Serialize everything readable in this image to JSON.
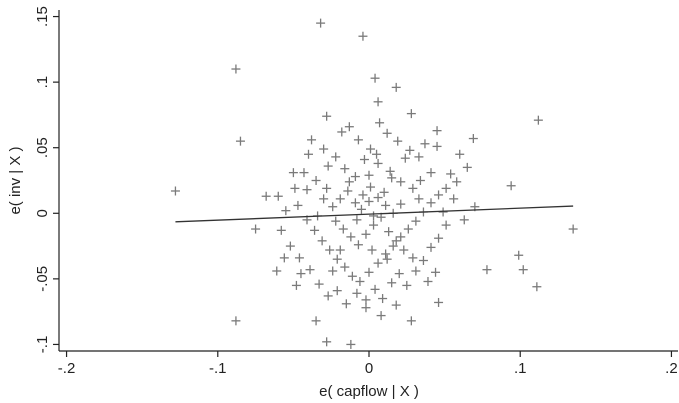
{
  "chart_data": {
    "type": "scatter",
    "title": "",
    "xlabel": "e( capflow | X )",
    "ylabel": "e( inv | X )",
    "xlim": [
      -0.205,
      0.205
    ],
    "ylim": [
      -0.105,
      0.155
    ],
    "x_ticks": [
      -0.2,
      -0.1,
      0,
      0.1,
      0.2
    ],
    "x_tick_labels": [
      "-.2",
      "-.1",
      "0",
      ".1",
      ".2"
    ],
    "y_ticks": [
      -0.1,
      -0.05,
      0,
      0.05,
      0.1,
      0.15
    ],
    "y_tick_labels": [
      "-.1",
      "-.05",
      "0",
      ".05",
      ".1",
      ".15"
    ],
    "grid": false,
    "marker": "plus",
    "colors": {
      "points": "#7a7a7a",
      "fit_line": "#333333",
      "axes": "#222222"
    },
    "fit_line": {
      "x": [
        -0.128,
        0.135
      ],
      "y": [
        -0.0065,
        0.0055
      ]
    },
    "points": [
      [
        -0.032,
        0.145
      ],
      [
        -0.004,
        0.135
      ],
      [
        -0.088,
        0.11
      ],
      [
        0.004,
        0.103
      ],
      [
        0.018,
        0.096
      ],
      [
        0.006,
        0.085
      ],
      [
        -0.085,
        0.055
      ],
      [
        0.112,
        0.071
      ],
      [
        -0.028,
        0.074
      ],
      [
        0.028,
        0.076
      ],
      [
        0.045,
        0.063
      ],
      [
        0.069,
        0.057
      ],
      [
        -0.128,
        0.017
      ],
      [
        -0.06,
        0.013
      ],
      [
        -0.05,
        0.031
      ],
      [
        -0.068,
        0.013
      ],
      [
        0.094,
        0.021
      ],
      [
        0.065,
        0.035
      ],
      [
        0.054,
        0.03
      ],
      [
        0.07,
        0.005
      ],
      [
        -0.075,
        -0.012
      ],
      [
        -0.061,
        -0.044
      ],
      [
        -0.045,
        -0.046
      ],
      [
        -0.088,
        -0.082
      ],
      [
        -0.035,
        -0.082
      ],
      [
        -0.028,
        -0.098
      ],
      [
        -0.002,
        -0.072
      ],
      [
        0.008,
        -0.078
      ],
      [
        -0.012,
        -0.1
      ],
      [
        0.028,
        -0.082
      ],
      [
        0.046,
        -0.068
      ],
      [
        0.078,
        -0.043
      ],
      [
        0.099,
        -0.032
      ],
      [
        0.102,
        -0.043
      ],
      [
        0.111,
        -0.056
      ],
      [
        0.135,
        -0.012
      ],
      [
        -0.04,
        0.045
      ],
      [
        -0.038,
        0.056
      ],
      [
        -0.03,
        0.049
      ],
      [
        -0.018,
        0.062
      ],
      [
        -0.013,
        0.066
      ],
      [
        0.001,
        0.049
      ],
      [
        0.012,
        0.061
      ],
      [
        0.024,
        0.042
      ],
      [
        0.033,
        0.043
      ],
      [
        0.045,
        0.051
      ],
      [
        0.041,
        0.031
      ],
      [
        0.034,
        0.025
      ],
      [
        0.029,
        0.019
      ],
      [
        0.021,
        0.024
      ],
      [
        0.014,
        0.032
      ],
      [
        0.006,
        0.038
      ],
      [
        -0.003,
        0.041
      ],
      [
        -0.009,
        0.028
      ],
      [
        -0.016,
        0.034
      ],
      [
        -0.022,
        0.043
      ],
      [
        -0.027,
        0.036
      ],
      [
        -0.035,
        0.025
      ],
      [
        -0.041,
        0.018
      ],
      [
        -0.047,
        0.006
      ],
      [
        -0.041,
        -0.005
      ],
      [
        -0.036,
        -0.013
      ],
      [
        -0.031,
        -0.021
      ],
      [
        -0.026,
        -0.028
      ],
      [
        -0.021,
        -0.035
      ],
      [
        -0.016,
        -0.041
      ],
      [
        -0.011,
        -0.048
      ],
      [
        -0.006,
        -0.052
      ],
      [
        0.0,
        -0.045
      ],
      [
        0.006,
        -0.038
      ],
      [
        0.011,
        -0.031
      ],
      [
        0.016,
        -0.025
      ],
      [
        0.021,
        -0.018
      ],
      [
        0.026,
        -0.012
      ],
      [
        0.031,
        -0.006
      ],
      [
        0.036,
        0.001
      ],
      [
        0.041,
        0.008
      ],
      [
        0.046,
        0.014
      ],
      [
        0.051,
        0.019
      ],
      [
        0.056,
        0.011
      ],
      [
        -0.052,
        -0.025
      ],
      [
        -0.046,
        -0.034
      ],
      [
        -0.039,
        -0.043
      ],
      [
        -0.033,
        -0.054
      ],
      [
        -0.027,
        -0.063
      ],
      [
        -0.021,
        -0.059
      ],
      [
        -0.015,
        -0.069
      ],
      [
        -0.008,
        -0.061
      ],
      [
        -0.002,
        -0.066
      ],
      [
        0.004,
        -0.058
      ],
      [
        0.009,
        -0.065
      ],
      [
        0.015,
        -0.053
      ],
      [
        0.02,
        -0.046
      ],
      [
        0.025,
        -0.055
      ],
      [
        0.031,
        -0.044
      ],
      [
        0.036,
        -0.036
      ],
      [
        0.041,
        -0.026
      ],
      [
        0.046,
        -0.019
      ],
      [
        0.051,
        -0.009
      ],
      [
        0.044,
        -0.045
      ],
      [
        -0.024,
        0.005
      ],
      [
        -0.019,
        0.011
      ],
      [
        -0.014,
        0.017
      ],
      [
        -0.009,
        0.008
      ],
      [
        -0.004,
        0.014
      ],
      [
        0.001,
        0.02
      ],
      [
        0.006,
        0.012
      ],
      [
        0.011,
        0.006
      ],
      [
        0.016,
        0.0
      ],
      [
        0.021,
        0.007
      ],
      [
        -0.022,
        -0.006
      ],
      [
        -0.017,
        -0.012
      ],
      [
        -0.012,
        -0.018
      ],
      [
        -0.007,
        -0.024
      ],
      [
        -0.002,
        -0.016
      ],
      [
        0.003,
        -0.009
      ],
      [
        0.008,
        -0.003
      ],
      [
        0.013,
        -0.014
      ],
      [
        0.018,
        -0.021
      ],
      [
        0.023,
        -0.028
      ],
      [
        -0.005,
        0.003
      ],
      [
        0.0,
        0.009
      ],
      [
        0.003,
        -0.002
      ],
      [
        -0.008,
        -0.005
      ],
      [
        0.01,
        0.016
      ],
      [
        -0.013,
        0.024
      ],
      [
        0.015,
        0.027
      ],
      [
        -0.019,
        -0.028
      ],
      [
        0.012,
        -0.035
      ],
      [
        0.002,
        -0.028
      ],
      [
        -0.043,
        0.031
      ],
      [
        -0.049,
        0.019
      ],
      [
        -0.055,
        0.002
      ],
      [
        -0.058,
        -0.013
      ],
      [
        -0.03,
        0.011
      ],
      [
        0.027,
        0.048
      ],
      [
        0.037,
        0.053
      ],
      [
        0.019,
        0.055
      ],
      [
        0.007,
        0.069
      ],
      [
        -0.007,
        0.056
      ],
      [
        0.06,
        0.045
      ],
      [
        0.058,
        0.024
      ],
      [
        0.063,
        -0.005
      ],
      [
        0.039,
        -0.052
      ],
      [
        0.018,
        -0.07
      ],
      [
        -0.048,
        -0.055
      ],
      [
        -0.056,
        -0.034
      ],
      [
        0.0,
        0.029
      ],
      [
        0.005,
        0.045
      ],
      [
        -0.028,
        0.019
      ],
      [
        0.033,
        0.011
      ],
      [
        0.029,
        -0.034
      ],
      [
        -0.024,
        -0.044
      ],
      [
        -0.034,
        -0.002
      ],
      [
        0.049,
        0.001
      ]
    ]
  }
}
